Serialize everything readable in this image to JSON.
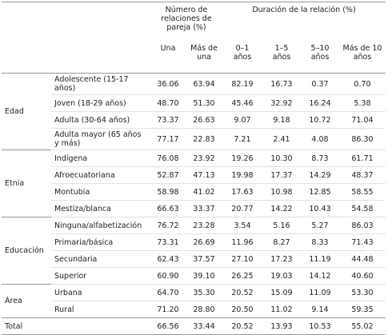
{
  "header": {
    "group_1": "Número de relaciones de pareja (%)",
    "group_2": "Duración de la relación (%)",
    "columns": [
      "Una",
      "Más de una",
      "0–1 años",
      "1–5 años",
      "5–10 años",
      "Más de 10 años"
    ]
  },
  "groups": [
    {
      "label": "Edad",
      "rows": [
        {
          "label": "Adolescente (15-17 años)",
          "values": [
            "36.06",
            "63.94",
            "82.19",
            "16.73",
            "0.37",
            "0.70"
          ]
        },
        {
          "label": "Joven (18-29 años)",
          "values": [
            "48.70",
            "51.30",
            "45.46",
            "32.92",
            "16.24",
            "5.38"
          ]
        },
        {
          "label": "Adulta (30-64 años)",
          "values": [
            "73.37",
            "26.63",
            "9.07",
            "9.18",
            "10.72",
            "71.04"
          ]
        },
        {
          "label": "Adulta mayor (65 años y más)",
          "values": [
            "77.17",
            "22.83",
            "7.21",
            "2.41",
            "4.08",
            "86.30"
          ]
        }
      ]
    },
    {
      "label": "Etnia",
      "rows": [
        {
          "label": "Indígena",
          "values": [
            "76.08",
            "23.92",
            "19.26",
            "10.30",
            "8.73",
            "61.71"
          ]
        },
        {
          "label": "Afroecuatoriana",
          "values": [
            "52.87",
            "47.13",
            "19.98",
            "17.37",
            "14.29",
            "48.37"
          ]
        },
        {
          "label": "Montubia",
          "values": [
            "58.98",
            "41.02",
            "17.63",
            "10.98",
            "12.85",
            "58.55"
          ]
        },
        {
          "label": "Mestiza/blanca",
          "values": [
            "66.63",
            "33.37",
            "20.77",
            "14.22",
            "10.43",
            "54.58"
          ]
        }
      ]
    },
    {
      "label": "Educación",
      "rows": [
        {
          "label": "Ninguna/alfabetización",
          "values": [
            "76.72",
            "23.28",
            "3.54",
            "5.16",
            "5.27",
            "86.03"
          ]
        },
        {
          "label": "Primaria/básica",
          "values": [
            "73.31",
            "26.69",
            "11.96",
            "8.27",
            "8.33",
            "71.43"
          ]
        },
        {
          "label": "Secundaria",
          "values": [
            "62.43",
            "37.57",
            "27.10",
            "17.23",
            "11.19",
            "44.48"
          ]
        },
        {
          "label": "Superior",
          "values": [
            "60.90",
            "39.10",
            "26.25",
            "19.03",
            "14.12",
            "40.60"
          ]
        }
      ]
    },
    {
      "label": "Área",
      "rows": [
        {
          "label": "Urbana",
          "values": [
            "64.70",
            "35.30",
            "20.52",
            "15.09",
            "11.09",
            "53.30"
          ]
        },
        {
          "label": "Rural",
          "values": [
            "71.20",
            "28.80",
            "20.50",
            "11.02",
            "9.14",
            "59.35"
          ]
        }
      ]
    }
  ],
  "total": {
    "label": "Total",
    "values": [
      "66.56",
      "33.44",
      "20.52",
      "13.93",
      "10.53",
      "55.02"
    ]
  }
}
